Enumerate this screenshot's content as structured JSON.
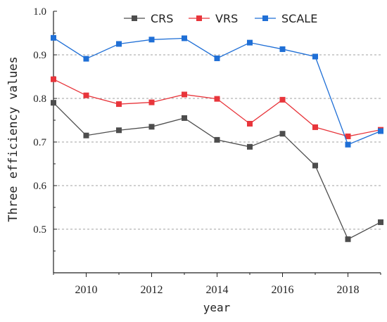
{
  "chart_data": {
    "type": "line",
    "xlabel": "year",
    "ylabel": "Three efficiency values",
    "xlim": [
      2009,
      2019
    ],
    "ylim": [
      0.4,
      1.0
    ],
    "xticks": [
      2010,
      2012,
      2014,
      2016,
      2018
    ],
    "yticks": [
      0.5,
      0.6,
      0.7,
      0.8,
      0.9,
      1.0
    ],
    "grid": "horizontal-dashed",
    "legend_position": "top",
    "x": [
      2009,
      2010,
      2011,
      2012,
      2013,
      2014,
      2015,
      2016,
      2017,
      2018,
      2019
    ],
    "series": [
      {
        "name": "CRS",
        "color": "#4d4d4d",
        "values": [
          0.79,
          0.715,
          0.727,
          0.735,
          0.755,
          0.705,
          0.689,
          0.719,
          0.646,
          0.477,
          0.516
        ]
      },
      {
        "name": "VRS",
        "color": "#e8353b",
        "values": [
          0.844,
          0.807,
          0.787,
          0.791,
          0.809,
          0.799,
          0.742,
          0.797,
          0.734,
          0.713,
          0.728
        ]
      },
      {
        "name": "SCALE",
        "color": "#1f6fd6",
        "values": [
          0.939,
          0.891,
          0.925,
          0.935,
          0.938,
          0.892,
          0.928,
          0.913,
          0.896,
          0.694,
          0.725
        ]
      }
    ]
  }
}
